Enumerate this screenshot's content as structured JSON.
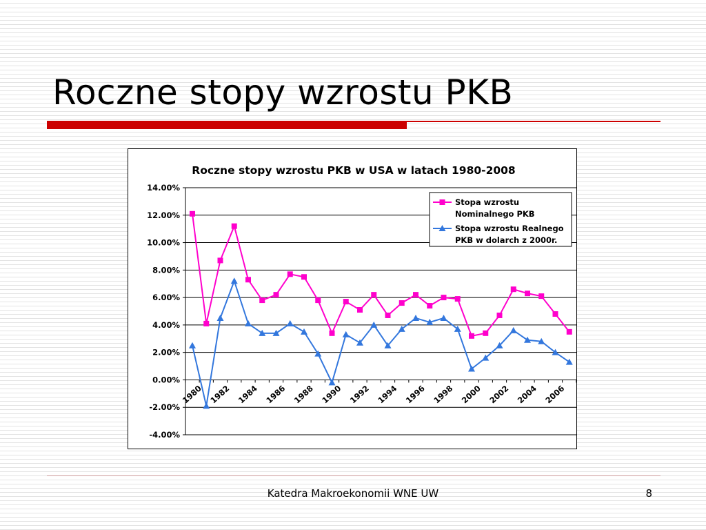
{
  "slide": {
    "title": "Roczne stopy wzrostu PKB",
    "footer": "Katedra Makroekonomii WNE UW",
    "page_number": "8",
    "accent_color": "#cc0000"
  },
  "chart_data": {
    "type": "line",
    "title": "Roczne stopy wzrostu PKB w USA w latach 1980-2008",
    "xlabel": "",
    "ylabel": "",
    "x": [
      1980,
      1981,
      1982,
      1983,
      1984,
      1985,
      1986,
      1987,
      1988,
      1989,
      1990,
      1991,
      1992,
      1993,
      1994,
      1995,
      1996,
      1997,
      1998,
      1999,
      2000,
      2001,
      2002,
      2003,
      2004,
      2005,
      2006,
      2007
    ],
    "x_tick_labels": [
      "1980",
      "1982",
      "1984",
      "1986",
      "1988",
      "1990",
      "1992",
      "1994",
      "1996",
      "1998",
      "2000",
      "2002",
      "2004",
      "2006"
    ],
    "ylim": [
      -4,
      14
    ],
    "y_tick_labels": [
      "14.00%",
      "12.00%",
      "10.00%",
      "8.00%",
      "6.00%",
      "4.00%",
      "2.00%",
      "0.00%",
      "-2.00%",
      "-4.00%"
    ],
    "grid": true,
    "legend_position": "top-right",
    "series": [
      {
        "name": "Stopa wzrostu Nominalnego PKB",
        "legend_lines": [
          "Stopa wzrostu",
          "Nominalnego PKB"
        ],
        "color": "#ff00cc",
        "marker": "square",
        "values": [
          12.1,
          4.1,
          8.7,
          11.2,
          7.3,
          5.8,
          6.2,
          7.7,
          7.5,
          5.8,
          3.4,
          5.7,
          5.1,
          6.2,
          4.7,
          5.6,
          6.2,
          5.4,
          6.0,
          5.9,
          3.2,
          3.4,
          4.7,
          6.6,
          6.3,
          6.1,
          4.8,
          3.5
        ]
      },
      {
        "name": "Stopa wzrostu Realnego PKB w dolarch z 2000r.",
        "legend_lines": [
          "Stopa wzrostu Realnego",
          "PKB w dolarch z 2000r."
        ],
        "color": "#3377dd",
        "marker": "triangle",
        "values": [
          2.5,
          -1.9,
          4.5,
          7.2,
          4.1,
          3.4,
          3.4,
          4.1,
          3.5,
          1.9,
          -0.2,
          3.3,
          2.7,
          4.0,
          2.5,
          3.7,
          4.5,
          4.2,
          4.5,
          3.7,
          0.8,
          1.6,
          2.5,
          3.6,
          2.9,
          2.8,
          2.0,
          1.3
        ]
      }
    ]
  }
}
